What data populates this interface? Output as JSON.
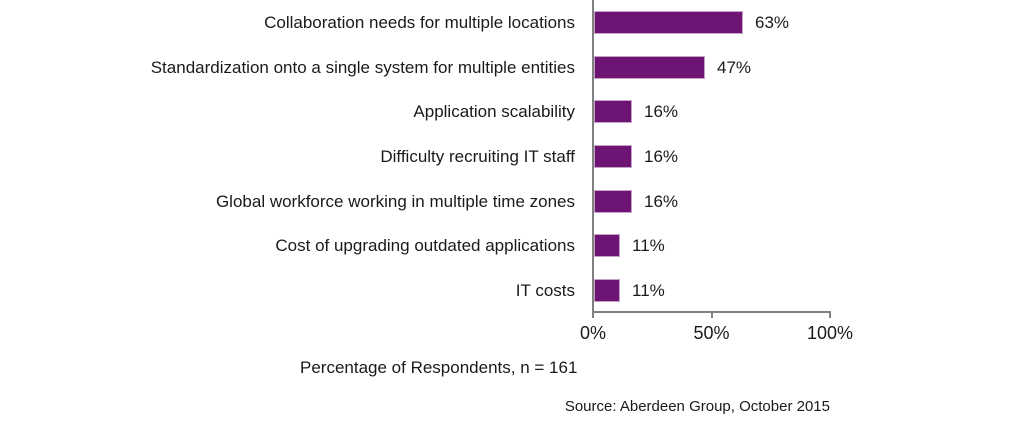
{
  "chart_data": {
    "type": "bar",
    "orientation": "horizontal",
    "categories": [
      "Collaboration needs for multiple locations",
      "Standardization onto a single system for multiple entities",
      "Application scalability",
      "Difficulty recruiting IT staff",
      "Global workforce working in multiple time zones",
      "Cost of upgrading outdated applications",
      "IT costs"
    ],
    "values": [
      63,
      47,
      16,
      16,
      16,
      11,
      11
    ],
    "value_labels": [
      "63%",
      "47%",
      "16%",
      "16%",
      "16%",
      "11%",
      "11%"
    ],
    "xlabel": "Percentage of Respondents, n = 161",
    "xlim": [
      0,
      100
    ],
    "x_ticks": [
      {
        "label": "0%",
        "value": 0
      },
      {
        "label": "50%",
        "value": 50
      },
      {
        "label": "100%",
        "value": 100
      }
    ],
    "grid": false,
    "legend": "none",
    "source": "Source: Aberdeen Group, October 2015",
    "bar_color": "#6e1475",
    "bar_border_color": "#c5a3c8",
    "axis_color": "#808080",
    "text_color": "#1a1a1a"
  }
}
